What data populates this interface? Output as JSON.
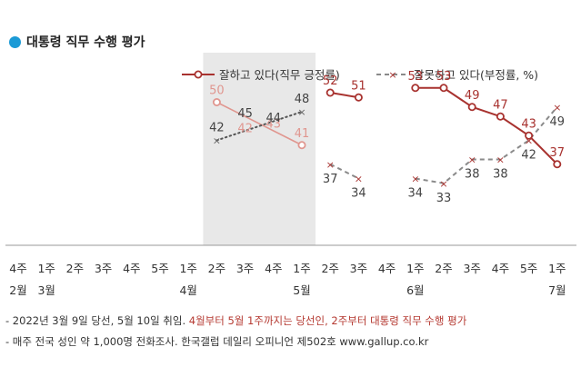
{
  "title": "대통령 직무 수행 평가",
  "colors": {
    "approve": "#a8322f",
    "approve_light": "#e0968f",
    "disapprove": "#8a8a8a",
    "shade": "#e8e8e8",
    "title_dot": "#1b9ad6",
    "highlight_text": "#b53a32"
  },
  "notes": [
    {
      "pre": "- 2022년 3월 9일 당선, 5월 10일 취임. ",
      "hl": "4월부터 5월 1주까지는 당선인, 2주부터 대통령 직무 수행 평가",
      "post": ""
    },
    {
      "pre": "- 매주 전국 성인 약 1,000명 전화조사. 한국갤럽 데일리 오피니언 제502호 www.gallup.co.kr",
      "hl": "",
      "post": ""
    }
  ],
  "chart_data": {
    "type": "line",
    "categories": [
      "4주",
      "1주",
      "2주",
      "3주",
      "4주",
      "5주",
      "1주",
      "2주",
      "3주",
      "4주",
      "1주",
      "2주",
      "3주",
      "4주",
      "1주",
      "2주",
      "3주",
      "4주",
      "5주",
      "1주"
    ],
    "months": [
      {
        "label": "2월",
        "index": 0
      },
      {
        "label": "3월",
        "index": 1
      },
      {
        "label": "4월",
        "index": 6
      },
      {
        "label": "5월",
        "index": 10
      },
      {
        "label": "6월",
        "index": 14
      },
      {
        "label": "7월",
        "index": 19
      }
    ],
    "shaded_range": [
      7,
      10
    ],
    "ylim": [
      20,
      60
    ],
    "series": [
      {
        "name": "잘하고 있다(직무 긍정률)",
        "key": "approve",
        "style": "solid",
        "marker": "circle",
        "segments": [
          [
            {
              "x": 7,
              "y": 50
            },
            {
              "x": 10,
              "y": 41
            }
          ],
          [
            {
              "x": 11,
              "y": 52
            },
            {
              "x": 12,
              "y": 51
            }
          ],
          [
            {
              "x": 14,
              "y": 53
            },
            {
              "x": 15,
              "y": 53
            },
            {
              "x": 16,
              "y": 49
            },
            {
              "x": 17,
              "y": 47
            },
            {
              "x": 18,
              "y": 43
            },
            {
              "x": 19,
              "y": 37
            }
          ]
        ],
        "points": [
          {
            "x": 7,
            "y": 50,
            "label": "50",
            "light": true
          },
          {
            "x": 8,
            "y": 42,
            "label": "42",
            "light": true
          },
          {
            "x": 9,
            "y": 43,
            "label": "43",
            "light": true
          },
          {
            "x": 10,
            "y": 41,
            "label": "41",
            "light": true
          },
          {
            "x": 11,
            "y": 52,
            "label": "52"
          },
          {
            "x": 12,
            "y": 51,
            "label": "51"
          },
          {
            "x": 14,
            "y": 53,
            "label": "53"
          },
          {
            "x": 15,
            "y": 53,
            "label": "53"
          },
          {
            "x": 16,
            "y": 49,
            "label": "49"
          },
          {
            "x": 17,
            "y": 47,
            "label": "47"
          },
          {
            "x": 18,
            "y": 43,
            "label": "43"
          },
          {
            "x": 19,
            "y": 37,
            "label": "37"
          }
        ]
      },
      {
        "name": "잘못하고 있다(부정률, %)",
        "key": "disapprove",
        "style": "dashed",
        "marker": "x",
        "segments": [
          [
            {
              "x": 7,
              "y": 42
            },
            {
              "x": 10,
              "y": 48
            }
          ],
          [
            {
              "x": 11,
              "y": 37
            },
            {
              "x": 12,
              "y": 34
            }
          ],
          [
            {
              "x": 14,
              "y": 34
            },
            {
              "x": 15,
              "y": 33
            },
            {
              "x": 16,
              "y": 38
            },
            {
              "x": 17,
              "y": 38
            },
            {
              "x": 18,
              "y": 42
            },
            {
              "x": 19,
              "y": 49
            }
          ]
        ],
        "points": [
          {
            "x": 7,
            "y": 42,
            "label": "42"
          },
          {
            "x": 8,
            "y": 45,
            "label": "45"
          },
          {
            "x": 9,
            "y": 44,
            "label": "44"
          },
          {
            "x": 10,
            "y": 48,
            "label": "48"
          },
          {
            "x": 11,
            "y": 37,
            "label": "37"
          },
          {
            "x": 12,
            "y": 34,
            "label": "34"
          },
          {
            "x": 14,
            "y": 34,
            "label": "34"
          },
          {
            "x": 15,
            "y": 33,
            "label": "33"
          },
          {
            "x": 16,
            "y": 38,
            "label": "38"
          },
          {
            "x": 17,
            "y": 38,
            "label": "38"
          },
          {
            "x": 18,
            "y": 42,
            "label": "42"
          },
          {
            "x": 19,
            "y": 49,
            "label": "49"
          }
        ]
      }
    ]
  }
}
